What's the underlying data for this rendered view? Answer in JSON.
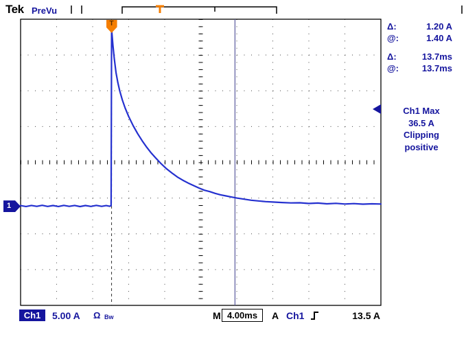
{
  "colors": {
    "trace": "#2430cf",
    "navy": "#15159e",
    "orange": "#f57e00",
    "grid_dots": "#444444",
    "black": "#000000",
    "cursor_b": "#5b5b9e"
  },
  "header": {
    "brand": "Tek",
    "mode": "PreVu"
  },
  "graticule_markers": {
    "trigger_label": "T",
    "channel_label": "1"
  },
  "measure_panel": {
    "cursor_rows": [
      {
        "label": "Δ:",
        "value": "1.20 A"
      },
      {
        "label": "@:",
        "value": "1.40 A"
      },
      {
        "label": "Δ:",
        "value": "13.7ms"
      },
      {
        "label": "@:",
        "value": "13.7ms"
      }
    ],
    "measurement": [
      "Ch1 Max",
      "36.5 A",
      "Clipping",
      "positive"
    ]
  },
  "status_bar": {
    "channel": "Ch1",
    "scale": "5.00 A",
    "coupling": "Ω",
    "bandwidth": "Bw",
    "timebase_label": "M",
    "timebase": "4.00ms",
    "trigger_system": "A",
    "trigger_source": "Ch1",
    "trigger_level": "13.5 A"
  },
  "chart_data": {
    "type": "line",
    "x_units": "ms",
    "y_units": "A",
    "time_per_div_ms": 4.0,
    "amps_per_div": 5.0,
    "x_range_ms": [
      0,
      40
    ],
    "divisions": {
      "cols": 10,
      "rows": 8
    },
    "ground_div_from_bottom": 2.78,
    "trigger": {
      "time_ms": 10.1,
      "level_a": 13.5
    },
    "cursors": {
      "a_ms": 10.1,
      "b_ms": 23.8
    },
    "series": [
      {
        "name": "Ch1",
        "points": [
          [
            0,
            0.05
          ],
          [
            0.6,
            -0.08
          ],
          [
            1.2,
            0.07
          ],
          [
            1.8,
            -0.06
          ],
          [
            2.4,
            0.09
          ],
          [
            3,
            -0.07
          ],
          [
            3.6,
            0.06
          ],
          [
            4.2,
            -0.08
          ],
          [
            4.8,
            0.08
          ],
          [
            5.4,
            -0.06
          ],
          [
            6,
            0.07
          ],
          [
            6.6,
            -0.09
          ],
          [
            7.2,
            0.06
          ],
          [
            7.8,
            -0.07
          ],
          [
            8.4,
            0.08
          ],
          [
            9,
            -0.06
          ],
          [
            9.5,
            0.05
          ],
          [
            9.9,
            -0.05
          ],
          [
            10.05,
            0.05
          ],
          [
            10.1,
            24.7
          ],
          [
            10.25,
            22.5
          ],
          [
            10.4,
            20.6
          ],
          [
            10.6,
            18.6
          ],
          [
            10.8,
            17.2
          ],
          [
            11,
            16.1
          ],
          [
            11.3,
            14.8
          ],
          [
            11.6,
            13.7
          ],
          [
            12,
            12.5
          ],
          [
            12.5,
            11.2
          ],
          [
            13,
            10.1
          ],
          [
            13.5,
            9.1
          ],
          [
            14,
            8.2
          ],
          [
            14.5,
            7.4
          ],
          [
            15,
            6.7
          ],
          [
            15.6,
            5.9
          ],
          [
            16.2,
            5.2
          ],
          [
            16.8,
            4.6
          ],
          [
            17.4,
            4.05
          ],
          [
            18,
            3.6
          ],
          [
            18.6,
            3.2
          ],
          [
            19.2,
            2.85
          ],
          [
            19.8,
            2.5
          ],
          [
            20.4,
            2.2
          ],
          [
            21,
            2.0
          ],
          [
            21.6,
            1.75
          ],
          [
            22.2,
            1.55
          ],
          [
            22.8,
            1.4
          ],
          [
            23.4,
            1.25
          ],
          [
            24,
            1.1
          ],
          [
            24.8,
            0.95
          ],
          [
            25.6,
            0.8
          ],
          [
            26.4,
            0.7
          ],
          [
            27.2,
            0.6
          ],
          [
            28,
            0.55
          ],
          [
            29,
            0.48
          ],
          [
            30,
            0.42
          ],
          [
            31,
            0.44
          ],
          [
            32,
            0.34
          ],
          [
            33,
            0.4
          ],
          [
            34,
            0.3
          ],
          [
            35,
            0.36
          ],
          [
            36,
            0.27
          ],
          [
            37,
            0.33
          ],
          [
            38,
            0.25
          ],
          [
            39,
            0.3
          ],
          [
            40,
            0.27
          ]
        ]
      }
    ]
  }
}
